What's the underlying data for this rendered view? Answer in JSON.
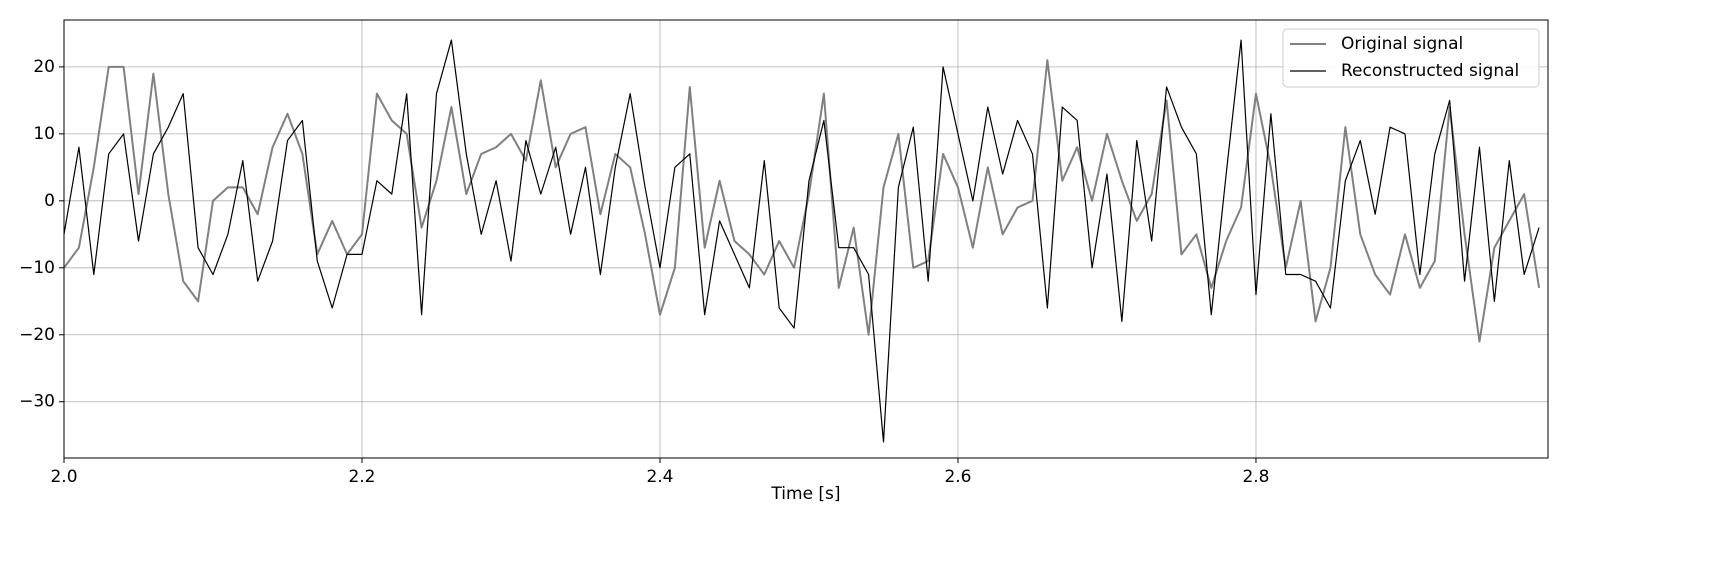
{
  "chart_data": {
    "type": "line",
    "xlabel": "Time [s]",
    "x": [
      2.0,
      2.01,
      2.02,
      2.03,
      2.04,
      2.05,
      2.06,
      2.07,
      2.08,
      2.09,
      2.1,
      2.11,
      2.12,
      2.13,
      2.14,
      2.15,
      2.16,
      2.17,
      2.18,
      2.19,
      2.2,
      2.21,
      2.22,
      2.23,
      2.24,
      2.25,
      2.26,
      2.27,
      2.28,
      2.29,
      2.3,
      2.31,
      2.32,
      2.33,
      2.34,
      2.35,
      2.36,
      2.37,
      2.38,
      2.39,
      2.4,
      2.41,
      2.42,
      2.43,
      2.44,
      2.45,
      2.46,
      2.47,
      2.48,
      2.49,
      2.5,
      2.51,
      2.52,
      2.53,
      2.54,
      2.55,
      2.56,
      2.57,
      2.58,
      2.59,
      2.6,
      2.61,
      2.62,
      2.63,
      2.64,
      2.65,
      2.66,
      2.67,
      2.68,
      2.69,
      2.7,
      2.71,
      2.72,
      2.73,
      2.74,
      2.75,
      2.76,
      2.77,
      2.78,
      2.79,
      2.8,
      2.81,
      2.82,
      2.83,
      2.84,
      2.85,
      2.86,
      2.87,
      2.88,
      2.89,
      2.9,
      2.91,
      2.92,
      2.93,
      2.94,
      2.95,
      2.96,
      2.97,
      2.98,
      2.99
    ],
    "series": [
      {
        "name": "Original signal",
        "color": "#808080",
        "width": 2,
        "values": [
          -10,
          -7,
          5,
          20,
          20,
          1,
          19,
          1,
          -12,
          -15,
          0,
          2,
          2,
          -2,
          8,
          13,
          7,
          -8,
          -3,
          -8,
          -5,
          16,
          12,
          10,
          -4,
          3,
          14,
          1,
          7,
          8,
          10,
          6,
          18,
          5,
          10,
          11,
          -2,
          7,
          5,
          -5,
          -17,
          -10,
          17,
          -7,
          3,
          -6,
          -8,
          -11,
          -6,
          -10,
          1,
          16,
          -13,
          -4,
          -20,
          2,
          10,
          -10,
          -9,
          7,
          2,
          -7,
          5,
          -5,
          -1,
          0,
          21,
          3,
          8,
          0,
          10,
          3,
          -3,
          1,
          15,
          -8,
          -5,
          -13,
          -6,
          -1,
          16,
          5,
          -10,
          0,
          -18,
          -10,
          11,
          -5,
          -11,
          -14,
          -5,
          -13,
          -9,
          14,
          -5,
          -21,
          -7,
          -3,
          1,
          -13
        ]
      },
      {
        "name": "Reconstructed signal",
        "color": "#000000",
        "width": 1.2,
        "values": [
          -5,
          8,
          -11,
          7,
          10,
          -6,
          7,
          11,
          16,
          -7,
          -11,
          -5,
          6,
          -12,
          -6,
          9,
          12,
          -9,
          -16,
          -8,
          -8,
          3,
          1,
          16,
          -17,
          16,
          24,
          7,
          -5,
          3,
          -9,
          9,
          1,
          8,
          -5,
          5,
          -11,
          5,
          16,
          2,
          -10,
          5,
          7,
          -17,
          -3,
          -8,
          -13,
          6,
          -16,
          -19,
          3,
          12,
          -7,
          -7,
          -11,
          -36,
          2,
          11,
          -12,
          20,
          10,
          0,
          14,
          4,
          12,
          7,
          -16,
          14,
          12,
          -10,
          4,
          -18,
          9,
          -6,
          17,
          11,
          7,
          -17,
          4,
          24,
          -14,
          13,
          -11,
          -11,
          -12,
          -16,
          3,
          9,
          -2,
          11,
          10,
          -11,
          7,
          15,
          -12,
          8,
          -15,
          6,
          -11,
          -4
        ]
      }
    ],
    "xlim": [
      2.0,
      2.996
    ],
    "ylim": [
      -38.4,
      27
    ],
    "xticks": [
      {
        "value": 2.0,
        "label": "2.0"
      },
      2.2,
      2.4,
      2.6,
      2.8
    ],
    "yticks": [
      {
        "value": -30,
        "label": "−30"
      },
      {
        "value": -20,
        "label": "−20"
      },
      {
        "value": -10,
        "label": "−10"
      },
      0,
      10,
      20
    ],
    "grid": true,
    "legend": "upper-right"
  }
}
